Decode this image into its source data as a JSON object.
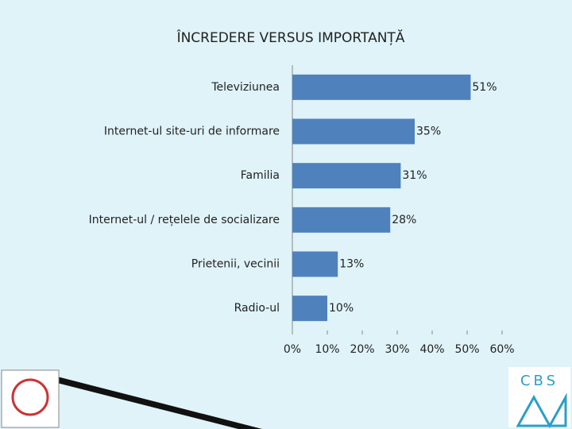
{
  "chart_data": {
    "type": "hbar",
    "title": "ÎNCREDERE VERSUS IMPORTANȚĂ",
    "categories": [
      "Televiziunea",
      "Internet-ul site-uri de informare",
      "Familia",
      "Internet-ul / rețelele de socializare",
      "Prietenii, vecinii",
      "Radio-ul"
    ],
    "values": [
      51,
      35,
      31,
      28,
      13,
      10
    ],
    "value_labels": [
      "51%",
      "35%",
      "31%",
      "28%",
      "13%",
      "10%"
    ],
    "color": "#4f81bd",
    "xlim": [
      0,
      60
    ],
    "xticks": [
      {
        "value": 0,
        "label": "0%"
      },
      {
        "value": 10,
        "label": "10%"
      },
      {
        "value": 20,
        "label": "20%"
      },
      {
        "value": 30,
        "label": "30%"
      },
      {
        "value": 40,
        "label": "40%"
      },
      {
        "value": 50,
        "label": "50%"
      },
      {
        "value": 60,
        "label": "60%"
      }
    ],
    "grid": false
  },
  "logo_text": "CBS"
}
